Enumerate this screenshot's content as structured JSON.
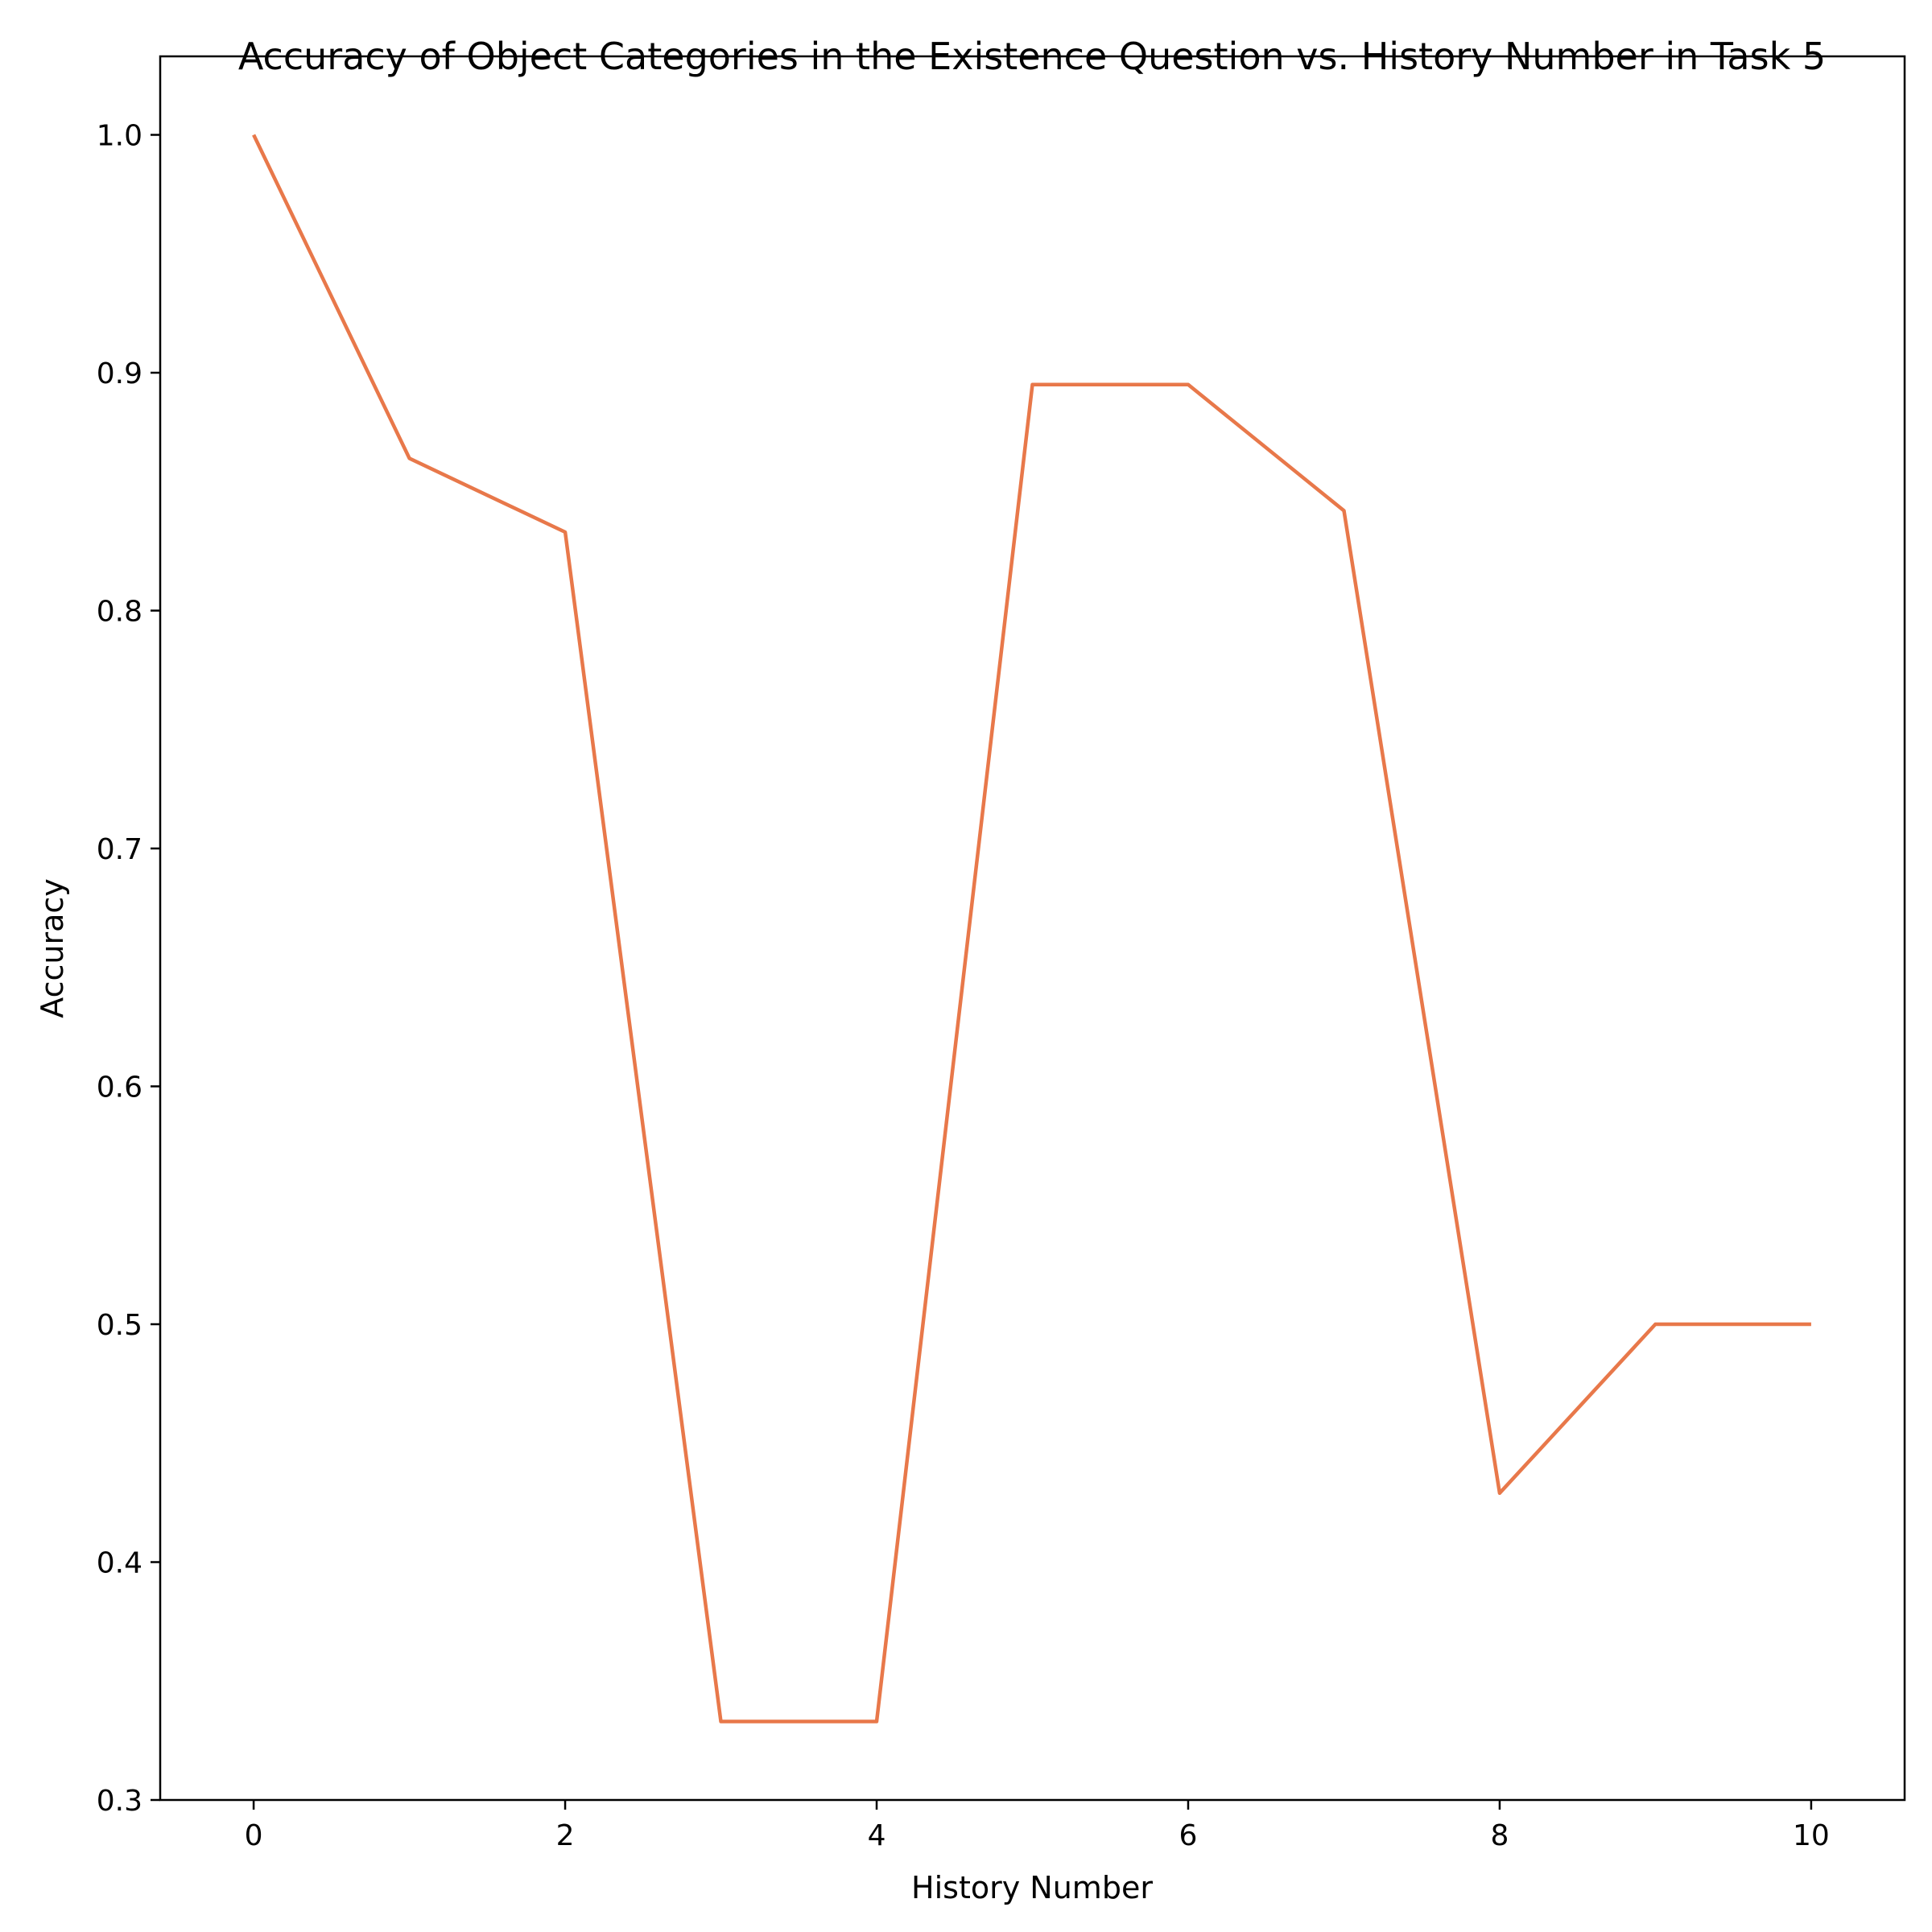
{
  "chart_data": {
    "type": "line",
    "title": "Accuracy of Object Categories in the Existence Question vs. History Number in Task 5",
    "xlabel": "History Number",
    "ylabel": "Accuracy",
    "xlim": [
      -0.6,
      10.6
    ],
    "ylim": [
      0.3,
      1.033
    ],
    "x_ticks": [
      0,
      2,
      4,
      6,
      8,
      10
    ],
    "x_tick_labels": [
      "0",
      "2",
      "4",
      "6",
      "8",
      "10"
    ],
    "y_ticks": [
      0.3,
      0.4,
      0.5,
      0.6,
      0.7,
      0.8,
      0.9,
      1.0
    ],
    "y_tick_labels": [
      "0.3",
      "0.4",
      "0.5",
      "0.6",
      "0.7",
      "0.8",
      "0.9",
      "1.0"
    ],
    "grid": false,
    "series": [
      {
        "color": "#e8784a",
        "x": [
          0,
          1,
          2,
          3,
          4,
          5,
          6,
          7,
          8,
          9,
          10
        ],
        "y": [
          1.0,
          0.864,
          0.833,
          0.333,
          0.333,
          0.895,
          0.895,
          0.842,
          0.429,
          0.5,
          0.5
        ]
      }
    ]
  }
}
